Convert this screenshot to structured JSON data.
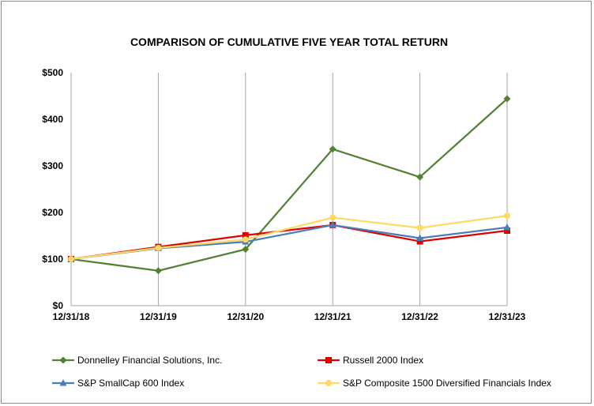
{
  "chart_data": {
    "type": "line",
    "title": "COMPARISON OF CUMULATIVE FIVE YEAR TOTAL RETURN",
    "categories": [
      "12/31/18",
      "12/31/19",
      "12/31/20",
      "12/31/21",
      "12/31/22",
      "12/31/23"
    ],
    "y_tick_labels": [
      "$0",
      "$100",
      "$200",
      "$300",
      "$400",
      "$500"
    ],
    "y_ticks": [
      0,
      100,
      200,
      300,
      400,
      500
    ],
    "ylim": [
      0,
      500
    ],
    "grid": "vertical",
    "legend_position": "bottom",
    "series": [
      {
        "name": "Donnelley Financial Solutions, Inc.",
        "color": "#548235",
        "marker": "diamond",
        "values": [
          100,
          75,
          121,
          336,
          276,
          444
        ]
      },
      {
        "name": "Russell 2000 Index",
        "color": "#e00000",
        "marker": "square",
        "values": [
          100,
          126,
          151,
          173,
          138,
          161
        ]
      },
      {
        "name": "S&P SmallCap 600 Index",
        "color": "#4a7ebb",
        "marker": "triangle",
        "values": [
          100,
          123,
          137,
          173,
          145,
          168
        ]
      },
      {
        "name": "S&P Composite 1500 Diversified Financials Index",
        "color": "#ffd966",
        "marker": "circle",
        "values": [
          100,
          124,
          142,
          189,
          167,
          193
        ]
      }
    ]
  }
}
